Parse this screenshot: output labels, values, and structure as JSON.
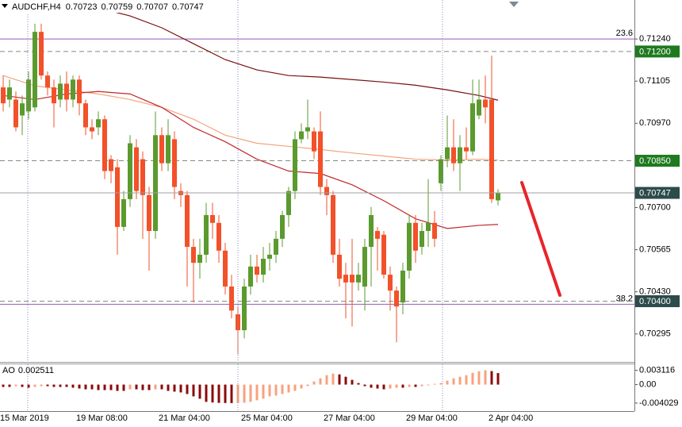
{
  "chart_data": {
    "type": "candlestick",
    "symbol": "AUDCHF,H4",
    "categories": [
      "15 Mar 2019",
      null,
      null,
      null,
      null,
      null,
      null,
      null,
      null,
      null,
      null,
      null,
      "19 Mar 08:00",
      null,
      null,
      null,
      null,
      null,
      null,
      null,
      null,
      null,
      null,
      null,
      null,
      "21 Mar 04:00",
      null,
      null,
      null,
      null,
      null,
      null,
      null,
      null,
      null,
      null,
      null,
      null,
      "25 Mar 04:00",
      null,
      null,
      null,
      null,
      null,
      null,
      null,
      null,
      null,
      null,
      null,
      null,
      "27 Mar 04:00",
      null,
      null,
      null,
      null,
      null,
      null,
      null,
      null,
      null,
      null,
      null,
      null,
      "29 Mar 04:00",
      null,
      null,
      null,
      null,
      null,
      null,
      null,
      null,
      null,
      null,
      null,
      null,
      "2 Apr 04:00",
      null
    ],
    "candles": [
      [
        0.71085,
        0.71123,
        0.71008,
        0.71034
      ],
      [
        0.71046,
        0.7111,
        0.71021,
        0.71085
      ],
      [
        0.71046,
        0.71072,
        0.70944,
        0.70957
      ],
      [
        0.70995,
        0.71059,
        0.70932,
        0.71034
      ],
      [
        0.71008,
        0.71136,
        0.70983,
        0.7111
      ],
      [
        0.71021,
        0.71289,
        0.71008,
        0.71263
      ],
      [
        0.71263,
        0.71289,
        0.7111,
        0.71123
      ],
      [
        0.71123,
        0.71136,
        0.71059,
        0.71085
      ],
      [
        0.71085,
        0.7111,
        0.70957,
        0.71034
      ],
      [
        0.71046,
        0.71123,
        0.71021,
        0.71097
      ],
      [
        0.71097,
        0.71136,
        0.71008,
        0.71046
      ],
      [
        0.71046,
        0.71123,
        0.71021,
        0.7111
      ],
      [
        0.7111,
        0.71123,
        0.70995,
        0.71034
      ],
      [
        0.71034,
        0.71046,
        0.70932,
        0.70957
      ],
      [
        0.70957,
        0.70983,
        0.70919,
        0.70944
      ],
      [
        0.70957,
        0.71008,
        0.70932,
        0.70983
      ],
      [
        0.70983,
        0.70995,
        0.70791,
        0.70817
      ],
      [
        0.70855,
        0.70868,
        0.70778,
        0.70817
      ],
      [
        0.70829,
        0.70855,
        0.70549,
        0.70638
      ],
      [
        0.70638,
        0.70753,
        0.70625,
        0.70727
      ],
      [
        0.70727,
        0.70932,
        0.70702,
        0.70906
      ],
      [
        0.70893,
        0.70919,
        0.70727,
        0.70753
      ],
      [
        0.70855,
        0.7088,
        0.706,
        0.7074
      ],
      [
        0.7074,
        0.70766,
        0.70498,
        0.70625
      ],
      [
        0.70625,
        0.71008,
        0.706,
        0.70932
      ],
      [
        0.70932,
        0.70957,
        0.70817,
        0.70842
      ],
      [
        0.70842,
        0.70983,
        0.70817,
        0.70932
      ],
      [
        0.70919,
        0.70944,
        0.70727,
        0.70766
      ],
      [
        0.70753,
        0.70778,
        0.70702,
        0.7074
      ],
      [
        0.7074,
        0.70753,
        0.70447,
        0.70574
      ],
      [
        0.70574,
        0.706,
        0.70396,
        0.70523
      ],
      [
        0.70523,
        0.706,
        0.70472,
        0.70549
      ],
      [
        0.70549,
        0.70715,
        0.70523,
        0.70676
      ],
      [
        0.70676,
        0.70715,
        0.706,
        0.70651
      ],
      [
        0.70651,
        0.70676,
        0.70523,
        0.70562
      ],
      [
        0.70562,
        0.70587,
        0.70421,
        0.70447
      ],
      [
        0.70447,
        0.70485,
        0.70345,
        0.7037
      ],
      [
        0.70358,
        0.70383,
        0.7023,
        0.70307
      ],
      [
        0.70307,
        0.70472,
        0.70281,
        0.70447
      ],
      [
        0.70447,
        0.70549,
        0.70421,
        0.70511
      ],
      [
        0.70511,
        0.70549,
        0.7046,
        0.70485
      ],
      [
        0.70485,
        0.70574,
        0.7046,
        0.70536
      ],
      [
        0.70536,
        0.70587,
        0.70498,
        0.70549
      ],
      [
        0.70549,
        0.70625,
        0.70523,
        0.706
      ],
      [
        0.706,
        0.70689,
        0.70574,
        0.70676
      ],
      [
        0.70676,
        0.70766,
        0.70638,
        0.70753
      ],
      [
        0.70753,
        0.70944,
        0.70727,
        0.70919
      ],
      [
        0.70919,
        0.7097,
        0.70906,
        0.70944
      ],
      [
        0.70944,
        0.71046,
        0.70919,
        0.70957
      ],
      [
        0.70944,
        0.70957,
        0.70855,
        0.7088
      ],
      [
        0.70944,
        0.71008,
        0.7074,
        0.70766
      ],
      [
        0.70766,
        0.70791,
        0.70676,
        0.7074
      ],
      [
        0.7074,
        0.70753,
        0.70523,
        0.70549
      ],
      [
        0.70549,
        0.706,
        0.70447,
        0.70472
      ],
      [
        0.70485,
        0.70523,
        0.70345,
        0.7046
      ],
      [
        0.70485,
        0.706,
        0.70319,
        0.7046
      ],
      [
        0.7046,
        0.70523,
        0.70434,
        0.70485
      ],
      [
        0.70447,
        0.706,
        0.7037,
        0.70574
      ],
      [
        0.70574,
        0.70702,
        0.70447,
        0.70676
      ],
      [
        0.70625,
        0.70638,
        0.70498,
        0.706
      ],
      [
        0.70613,
        0.70625,
        0.70472,
        0.70485
      ],
      [
        0.70485,
        0.70511,
        0.7037,
        0.70434
      ],
      [
        0.70434,
        0.70447,
        0.70268,
        0.70383
      ],
      [
        0.70396,
        0.70523,
        0.70358,
        0.70498
      ],
      [
        0.70498,
        0.70676,
        0.70472,
        0.70651
      ],
      [
        0.70651,
        0.70676,
        0.70523,
        0.70562
      ],
      [
        0.70574,
        0.70651,
        0.70549,
        0.70625
      ],
      [
        0.70625,
        0.70791,
        0.70574,
        0.70651
      ],
      [
        0.70651,
        0.70689,
        0.70574,
        0.706
      ],
      [
        0.70778,
        0.70868,
        0.70753,
        0.70855
      ],
      [
        0.70855,
        0.70995,
        0.70829,
        0.70893
      ],
      [
        0.70893,
        0.70983,
        0.70817,
        0.70842
      ],
      [
        0.70842,
        0.70932,
        0.70753,
        0.70893
      ],
      [
        0.70893,
        0.70957,
        0.70855,
        0.7088
      ],
      [
        0.7088,
        0.7111,
        0.70868,
        0.71034
      ],
      [
        0.70995,
        0.7111,
        0.70983,
        0.71046
      ],
      [
        0.71046,
        0.71123,
        0.7097,
        0.71021
      ],
      [
        0.71046,
        0.71187,
        0.70715,
        0.70727
      ],
      [
        0.70723,
        0.70759,
        0.70707,
        0.70747
      ]
    ],
    "up_color": "#5b9a2e",
    "down_color": "#f2512a",
    "ylim": [
      0.70208,
      0.71365
    ],
    "yticks": [
      {
        "value": 0.7124,
        "label": "0.71240"
      },
      0.71105,
      {
        "value": 0.7097,
        "label": "0.70970"
      },
      {
        "value": 0.707,
        "label": "0.70700"
      },
      0.70565,
      {
        "value": 0.7043,
        "label": "0.70430"
      },
      0.70295
    ],
    "moving_averages": [
      {
        "color": "#7a1010",
        "x": [
          8,
          15,
          20,
          25,
          30,
          35,
          40,
          45,
          50,
          55,
          60,
          65,
          70,
          75,
          78
        ],
        "values": [
          0.7136,
          0.7134,
          0.71314,
          0.71276,
          0.71225,
          0.71174,
          0.71141,
          0.71123,
          0.71118,
          0.7111,
          0.71102,
          0.71092,
          0.71077,
          0.71059,
          0.71044
        ]
      },
      {
        "color": "#f4a47e",
        "x": [
          0,
          5,
          10,
          15,
          20,
          25,
          30,
          35,
          40,
          45,
          50,
          55,
          60,
          65,
          70,
          75,
          78
        ],
        "values": [
          0.71123,
          0.7109,
          0.71077,
          0.71064,
          0.71046,
          0.71021,
          0.70983,
          0.70932,
          0.70906,
          0.70896,
          0.70886,
          0.70875,
          0.70865,
          0.70855,
          0.70852,
          0.70855,
          0.70852
        ]
      },
      {
        "color": "#c0282a",
        "x": [
          0,
          5,
          10,
          15,
          20,
          25,
          30,
          35,
          40,
          45,
          50,
          55,
          60,
          65,
          70,
          75,
          78
        ],
        "values": [
          0.71059,
          0.71046,
          0.71064,
          0.71072,
          0.71064,
          0.71021,
          0.70957,
          0.70911,
          0.70855,
          0.70817,
          0.70809,
          0.70773,
          0.70722,
          0.70664,
          0.70633,
          0.70643,
          0.70646
        ]
      }
    ],
    "levels": [
      {
        "value": 0.712,
        "label": "0.71200",
        "color": "#1f7a1f",
        "style": "dashed"
      },
      {
        "value": 0.7085,
        "label": "0.70850",
        "color": "#1f7a1f",
        "style": "dashed"
      },
      {
        "value": 0.704,
        "label": "0.70400",
        "color": "#2d4b4b",
        "style": "dashed"
      }
    ],
    "last_price_color": "#2d4b4b",
    "fib_levels": [
      {
        "name": "23.6",
        "value": 0.7124,
        "color": "#9b59b6"
      },
      {
        "name": "38.2",
        "value": 0.7039,
        "color": "#9b59b6"
      }
    ],
    "oscillator": {
      "name": "AO",
      "up_color": "#f7a27e",
      "down_color": "#8b0a0a",
      "ylim": [
        -0.00578,
        0.00442
      ],
      "yticks": [
        0.003116,
        {
          "value": 0,
          "label": "0.00"
        },
        -0.004029
      ],
      "values": [
        -0.000513,
        -0.000513,
        -0.000342,
        -0.000513,
        -0.000684,
        -0.000513,
        -0.000342,
        -0.000342,
        -0.000513,
        -0.000513,
        -0.000513,
        -0.000684,
        -0.000855,
        -0.001026,
        -0.001026,
        -0.001197,
        -0.001197,
        -0.001197,
        -0.001368,
        -0.001368,
        -0.001026,
        -0.001026,
        -0.001197,
        -0.001197,
        -0.001026,
        -0.001026,
        -0.001368,
        -0.001539,
        -0.00171,
        -0.002052,
        -0.002565,
        -0.003078,
        -0.003762,
        -0.0039,
        -0.003985,
        -0.00401,
        -0.004029,
        -0.004015,
        -0.00395,
        -0.003762,
        -0.00342,
        -0.003078,
        -0.002565,
        -0.002394,
        -0.002052,
        -0.00171,
        -0.001368,
        -0.000855,
        -0.000342,
        0.000684,
        0.001368,
        0.002052,
        0.002394,
        0.002223,
        0.00171,
        0.001026,
        0.000342,
        -0.000342,
        -0.000684,
        -0.000855,
        -0.001026,
        -0.000855,
        -0.000684,
        -0.000684,
        -0.000513,
        -0.000513,
        -0.000342,
        -0.000171,
        0.000171,
        0.000342,
        0.000855,
        0.001368,
        0.00171,
        0.002052,
        0.002565,
        0.002907,
        0.003116,
        0.00295,
        0.002511
      ]
    }
  }
}
